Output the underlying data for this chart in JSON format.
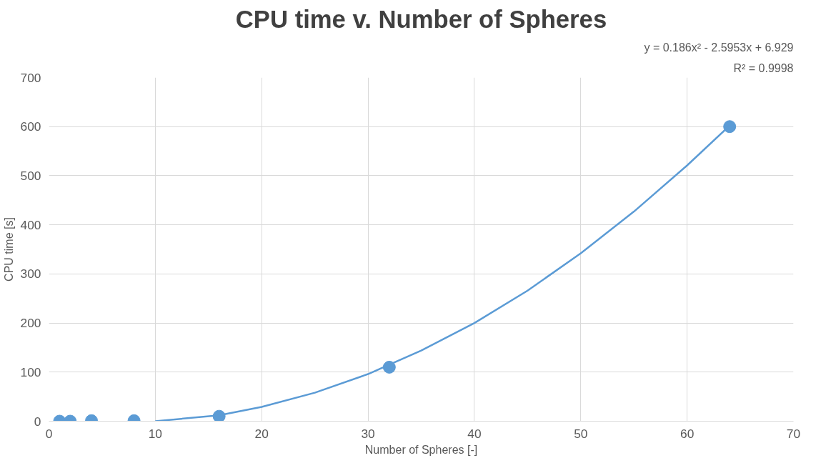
{
  "chart_data": {
    "type": "scatter",
    "title": "CPU time v. Number of Spheres",
    "xlabel": "Number of Spheres [-]",
    "ylabel": "CPU time [s]",
    "annotations": [
      "y = 0.186x² - 2.5953x + 6.929",
      "R² = 0.9998"
    ],
    "series": [
      {
        "color": "#5b9bd5",
        "marker": "circle",
        "x": [
          1,
          2,
          4,
          8,
          16,
          32,
          64
        ],
        "values": [
          0,
          0,
          1,
          1,
          10,
          110,
          600
        ]
      },
      {
        "type": "line",
        "color": "#5b9bd5",
        "line_style": "solid",
        "x": [
          10,
          16,
          20,
          25,
          30,
          35,
          40,
          45,
          50,
          55,
          60,
          64
        ],
        "values": [
          0,
          12,
          29,
          58,
          96,
          144,
          200,
          266,
          342,
          427,
          521,
          602
        ]
      }
    ],
    "xlim": [
      0,
      70
    ],
    "xticks": [
      0,
      10,
      20,
      30,
      40,
      50,
      60,
      70
    ],
    "ylim": [
      0,
      700
    ],
    "yticks": [
      0,
      100,
      200,
      300,
      400,
      500,
      600,
      700
    ],
    "grid": true
  }
}
